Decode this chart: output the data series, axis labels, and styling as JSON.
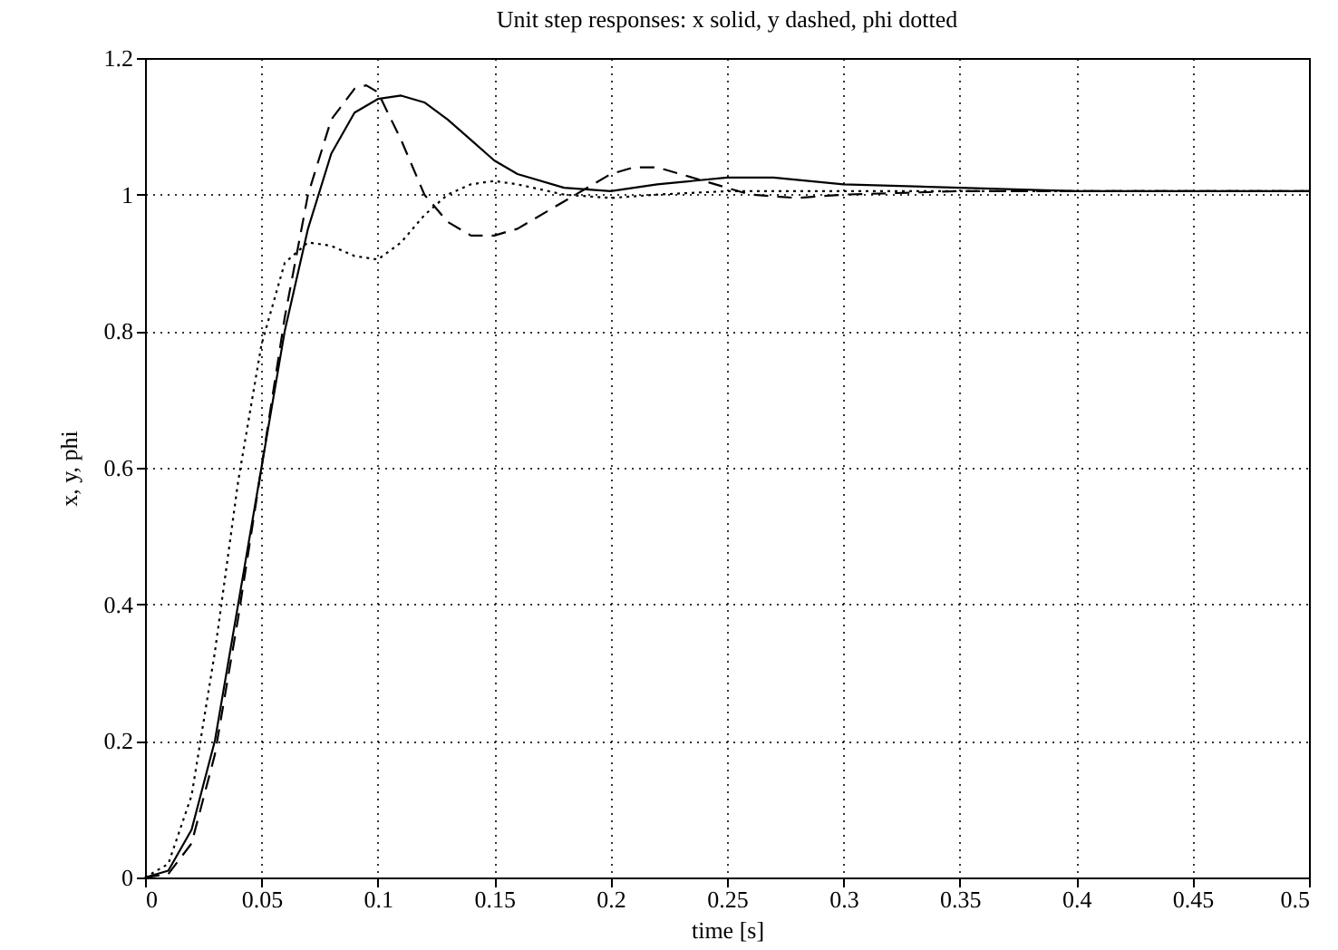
{
  "chart_data": {
    "type": "line",
    "title": "Unit step responses: x solid, y dashed, phi dotted",
    "xlabel": "time [s]",
    "ylabel": "x, y, phi",
    "xlim": [
      0,
      0.5
    ],
    "xticks": [
      0,
      0.05,
      0.1,
      0.15,
      0.2,
      0.25,
      0.3,
      0.35,
      0.4,
      0.45,
      0.5
    ],
    "ylim": [
      0,
      1.2
    ],
    "yticks": [
      0,
      0.2,
      0.4,
      0.6,
      0.8,
      1,
      1.2
    ],
    "grid": true,
    "legend": false,
    "series": [
      {
        "color": "#000000",
        "line_style": "solid",
        "x": [
          0,
          0.01,
          0.02,
          0.03,
          0.04,
          0.05,
          0.06,
          0.07,
          0.08,
          0.09,
          0.1,
          0.11,
          0.12,
          0.13,
          0.14,
          0.15,
          0.16,
          0.18,
          0.2,
          0.22,
          0.25,
          0.27,
          0.3,
          0.35,
          0.4,
          0.5
        ],
        "values": [
          0,
          0.01,
          0.07,
          0.2,
          0.4,
          0.6,
          0.8,
          0.95,
          1.06,
          1.12,
          1.14,
          1.145,
          1.135,
          1.11,
          1.08,
          1.05,
          1.03,
          1.01,
          1.005,
          1.015,
          1.025,
          1.025,
          1.015,
          1.01,
          1.005,
          1.005
        ]
      },
      {
        "color": "#000000",
        "line_style": "dashed",
        "x": [
          0,
          0.01,
          0.02,
          0.03,
          0.04,
          0.05,
          0.06,
          0.07,
          0.08,
          0.09,
          0.095,
          0.1,
          0.11,
          0.12,
          0.13,
          0.14,
          0.15,
          0.16,
          0.18,
          0.2,
          0.21,
          0.22,
          0.24,
          0.26,
          0.28,
          0.3,
          0.35,
          0.4,
          0.5
        ],
        "values": [
          0,
          0.005,
          0.05,
          0.18,
          0.38,
          0.6,
          0.82,
          1.0,
          1.11,
          1.155,
          1.16,
          1.15,
          1.08,
          1.0,
          0.96,
          0.94,
          0.94,
          0.95,
          0.99,
          1.03,
          1.04,
          1.04,
          1.02,
          1.0,
          0.995,
          1.0,
          1.005,
          1.005,
          1.005
        ]
      },
      {
        "color": "#000000",
        "line_style": "dotted",
        "x": [
          0,
          0.01,
          0.02,
          0.03,
          0.04,
          0.05,
          0.06,
          0.07,
          0.08,
          0.09,
          0.1,
          0.11,
          0.12,
          0.13,
          0.14,
          0.15,
          0.16,
          0.18,
          0.2,
          0.22,
          0.25,
          0.3,
          0.5
        ],
        "values": [
          0,
          0.02,
          0.12,
          0.33,
          0.58,
          0.78,
          0.9,
          0.93,
          0.925,
          0.91,
          0.905,
          0.93,
          0.97,
          1.0,
          1.015,
          1.02,
          1.015,
          1.0,
          0.995,
          1.0,
          1.005,
          1.005,
          1.005
        ]
      }
    ]
  }
}
